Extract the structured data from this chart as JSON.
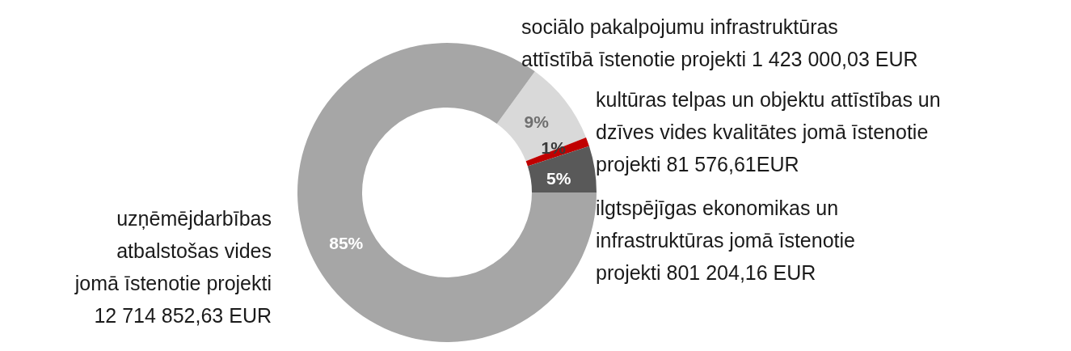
{
  "chart_data": {
    "type": "donut",
    "categories": [
      "sociālo pakalpojumu infrastruktūras\nattīstībā īstenotie projekti 1 423 000,03 EUR",
      "kultūras telpas un objektu  attīstības un\ndzīves vides kvalitātes jomā īstenotie\nprojekti 81 576,61EUR",
      "ilgtspējīgas        ekonomikas        un\ninfrastruktūras        jomā       īstenotie\nprojekti 801 204,16 EUR",
      "uzņēmējdarbības\natbalstošas vides\njomā īstenotie projekti\n12 714 852,63 EUR"
    ],
    "values": [
      9,
      1,
      5,
      85
    ],
    "value_labels": [
      "9%",
      "1%",
      "5%",
      "85%"
    ],
    "colors": [
      "#d9d9d9",
      "#c00000",
      "#595959",
      "#a6a6a6"
    ]
  }
}
